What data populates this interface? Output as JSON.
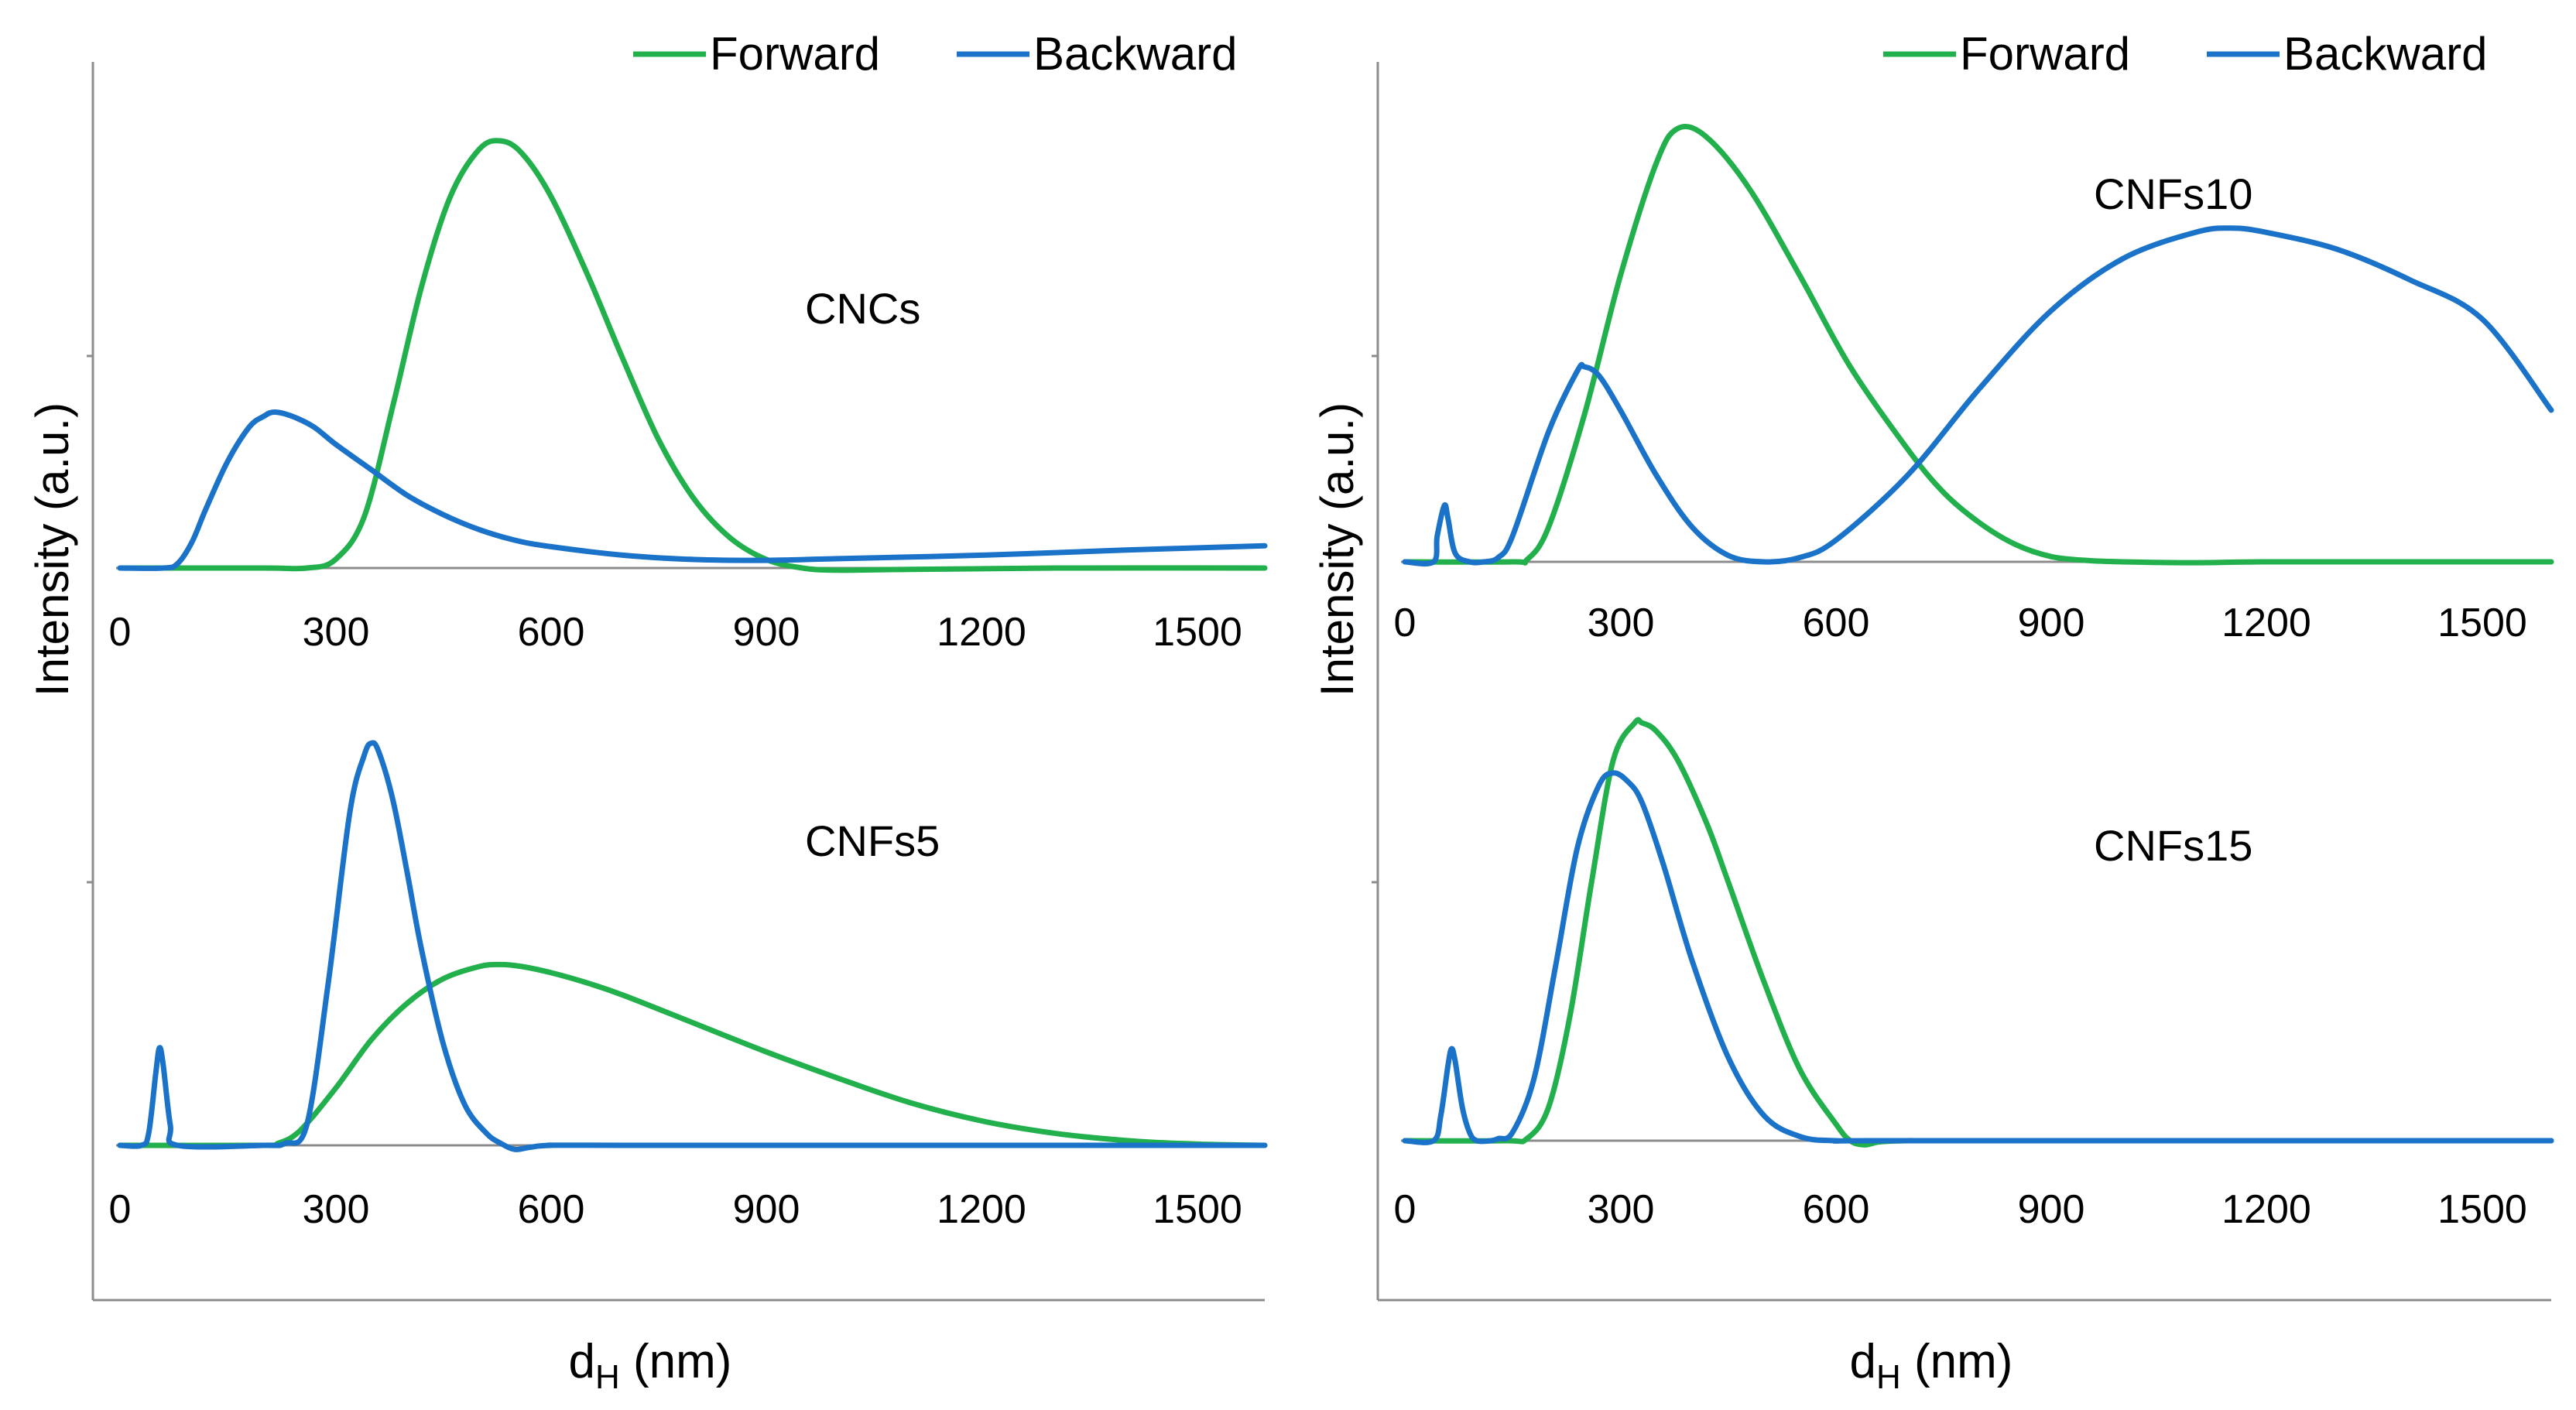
{
  "chart_data": [
    {
      "type": "line",
      "legend": [
        "Forward",
        "Backward"
      ],
      "colors": {
        "Forward": "#21b04b",
        "Backward": "#1a73c8"
      },
      "axis_color": "#8c8c8c",
      "ylabel": "Intensity (a.u.)",
      "xlabel": {
        "main": "d",
        "sub": "H",
        "unit": " (nm)"
      },
      "xlim": [
        0,
        1600
      ],
      "xticks": [
        "0",
        "300",
        "600",
        "900",
        "1200",
        "1500"
      ],
      "panels": [
        {
          "label": "CNCs",
          "series": [
            {
              "name": "Forward",
              "x": [
                0,
                200,
                260,
                300,
                340,
                380,
                420,
                460,
                500,
                530,
                560,
                600,
                650,
                700,
                750,
                800,
                850,
                900,
                950,
                1000,
                1100,
                1300,
                1600
              ],
              "y": [
                0,
                0,
                0,
                0.02,
                0.12,
                0.38,
                0.66,
                0.87,
                0.98,
                1.0,
                0.97,
                0.87,
                0.69,
                0.49,
                0.3,
                0.16,
                0.07,
                0.02,
                0.0,
                -0.005,
                -0.003,
                0,
                0
              ]
            },
            {
              "name": "Backward",
              "x": [
                0,
                60,
                80,
                100,
                120,
                150,
                180,
                200,
                215,
                240,
                270,
                300,
                350,
                400,
                450,
                500,
                550,
                600,
                700,
                800,
                900,
                1000,
                1200,
                1400,
                1600
              ],
              "y": [
                0,
                0,
                0.01,
                0.06,
                0.14,
                0.25,
                0.33,
                0.355,
                0.365,
                0.355,
                0.33,
                0.29,
                0.23,
                0.17,
                0.125,
                0.09,
                0.065,
                0.05,
                0.03,
                0.02,
                0.018,
                0.022,
                0.03,
                0.042,
                0.052
              ]
            }
          ]
        },
        {
          "label": "CNFs5",
          "series": [
            {
              "name": "Forward",
              "x": [
                0,
                200,
                220,
                250,
                300,
                350,
                400,
                450,
                500,
                530,
                560,
                600,
                650,
                700,
                800,
                900,
                1000,
                1100,
                1200,
                1300,
                1400,
                1500,
                1600
              ],
              "y": [
                0,
                0,
                0.005,
                0.035,
                0.14,
                0.26,
                0.35,
                0.41,
                0.44,
                0.445,
                0.44,
                0.425,
                0.4,
                0.37,
                0.3,
                0.23,
                0.165,
                0.105,
                0.06,
                0.03,
                0.012,
                0.003,
                0
              ]
            },
            {
              "name": "Backward",
              "x": [
                0,
                30,
                40,
                50,
                55,
                60,
                70,
                80,
                200,
                230,
                260,
                290,
                320,
                340,
                350,
                360,
                380,
                400,
                420,
                450,
                480,
                510,
                530,
                550,
                570,
                600,
                700,
                1600
              ],
              "y": [
                0,
                0,
                0.03,
                0.18,
                0.24,
                0.2,
                0.05,
                0,
                0,
                0.005,
                0.05,
                0.4,
                0.82,
                0.96,
                0.99,
                0.97,
                0.85,
                0.67,
                0.48,
                0.25,
                0.1,
                0.03,
                0.005,
                -0.01,
                -0.005,
                0,
                0,
                0
              ]
            }
          ]
        },
        {
          "label": "CNFs10",
          "series": [
            {
              "name": "Forward",
              "x": [
                0,
                150,
                170,
                200,
                250,
                300,
                350,
                380,
                420,
                480,
                550,
                620,
                700,
                750,
                800,
                850,
                900,
                950,
                1000,
                1100,
                1200,
                1400,
                1600
              ],
              "y": [
                0,
                0,
                0.005,
                0.08,
                0.34,
                0.66,
                0.92,
                1.0,
                0.98,
                0.86,
                0.66,
                0.45,
                0.26,
                0.16,
                0.09,
                0.04,
                0.012,
                0.003,
                0,
                -0.002,
                0,
                0,
                0
              ]
            },
            {
              "name": "Backward",
              "x": [
                0,
                40,
                45,
                55,
                60,
                70,
                90,
                110,
                130,
                150,
                200,
                240,
                250,
                270,
                300,
                350,
                400,
                450,
                500,
                550,
                600,
                700,
                800,
                900,
                1000,
                1100,
                1150,
                1200,
                1300,
                1400,
                1500,
                1600
              ],
              "y": [
                0,
                0,
                0.06,
                0.13,
                0.1,
                0.02,
                0,
                0,
                0.01,
                0.06,
                0.3,
                0.44,
                0.45,
                0.43,
                0.35,
                0.2,
                0.08,
                0.015,
                0,
                0.01,
                0.05,
                0.2,
                0.4,
                0.58,
                0.7,
                0.76,
                0.77,
                0.76,
                0.72,
                0.65,
                0.56,
                0.35
              ]
            }
          ]
        },
        {
          "label": "CNFs15",
          "series": [
            {
              "name": "Forward",
              "x": [
                0,
                140,
                170,
                200,
                230,
                260,
                290,
                320,
                330,
                350,
                380,
                420,
                450,
                500,
                550,
                600,
                620,
                640,
                660,
                700,
                800,
                1600
              ],
              "y": [
                0,
                0,
                0.005,
                0.08,
                0.3,
                0.62,
                0.91,
                1.0,
                1.0,
                0.98,
                0.91,
                0.76,
                0.62,
                0.38,
                0.17,
                0.04,
                0.0,
                -0.01,
                -0.003,
                0,
                0,
                0
              ]
            },
            {
              "name": "Backward",
              "x": [
                0,
                40,
                50,
                60,
                65,
                70,
                80,
                90,
                100,
                120,
                130,
                150,
                180,
                210,
                240,
                270,
                290,
                310,
                330,
                360,
                400,
                450,
                500,
                550,
                600,
                700,
                1600
              ],
              "y": [
                0,
                0,
                0.06,
                0.18,
                0.22,
                0.19,
                0.08,
                0.02,
                0,
                0,
                0.005,
                0.02,
                0.15,
                0.42,
                0.7,
                0.85,
                0.88,
                0.86,
                0.81,
                0.66,
                0.43,
                0.2,
                0.06,
                0.01,
                0,
                0,
                0
              ]
            }
          ]
        }
      ]
    }
  ]
}
